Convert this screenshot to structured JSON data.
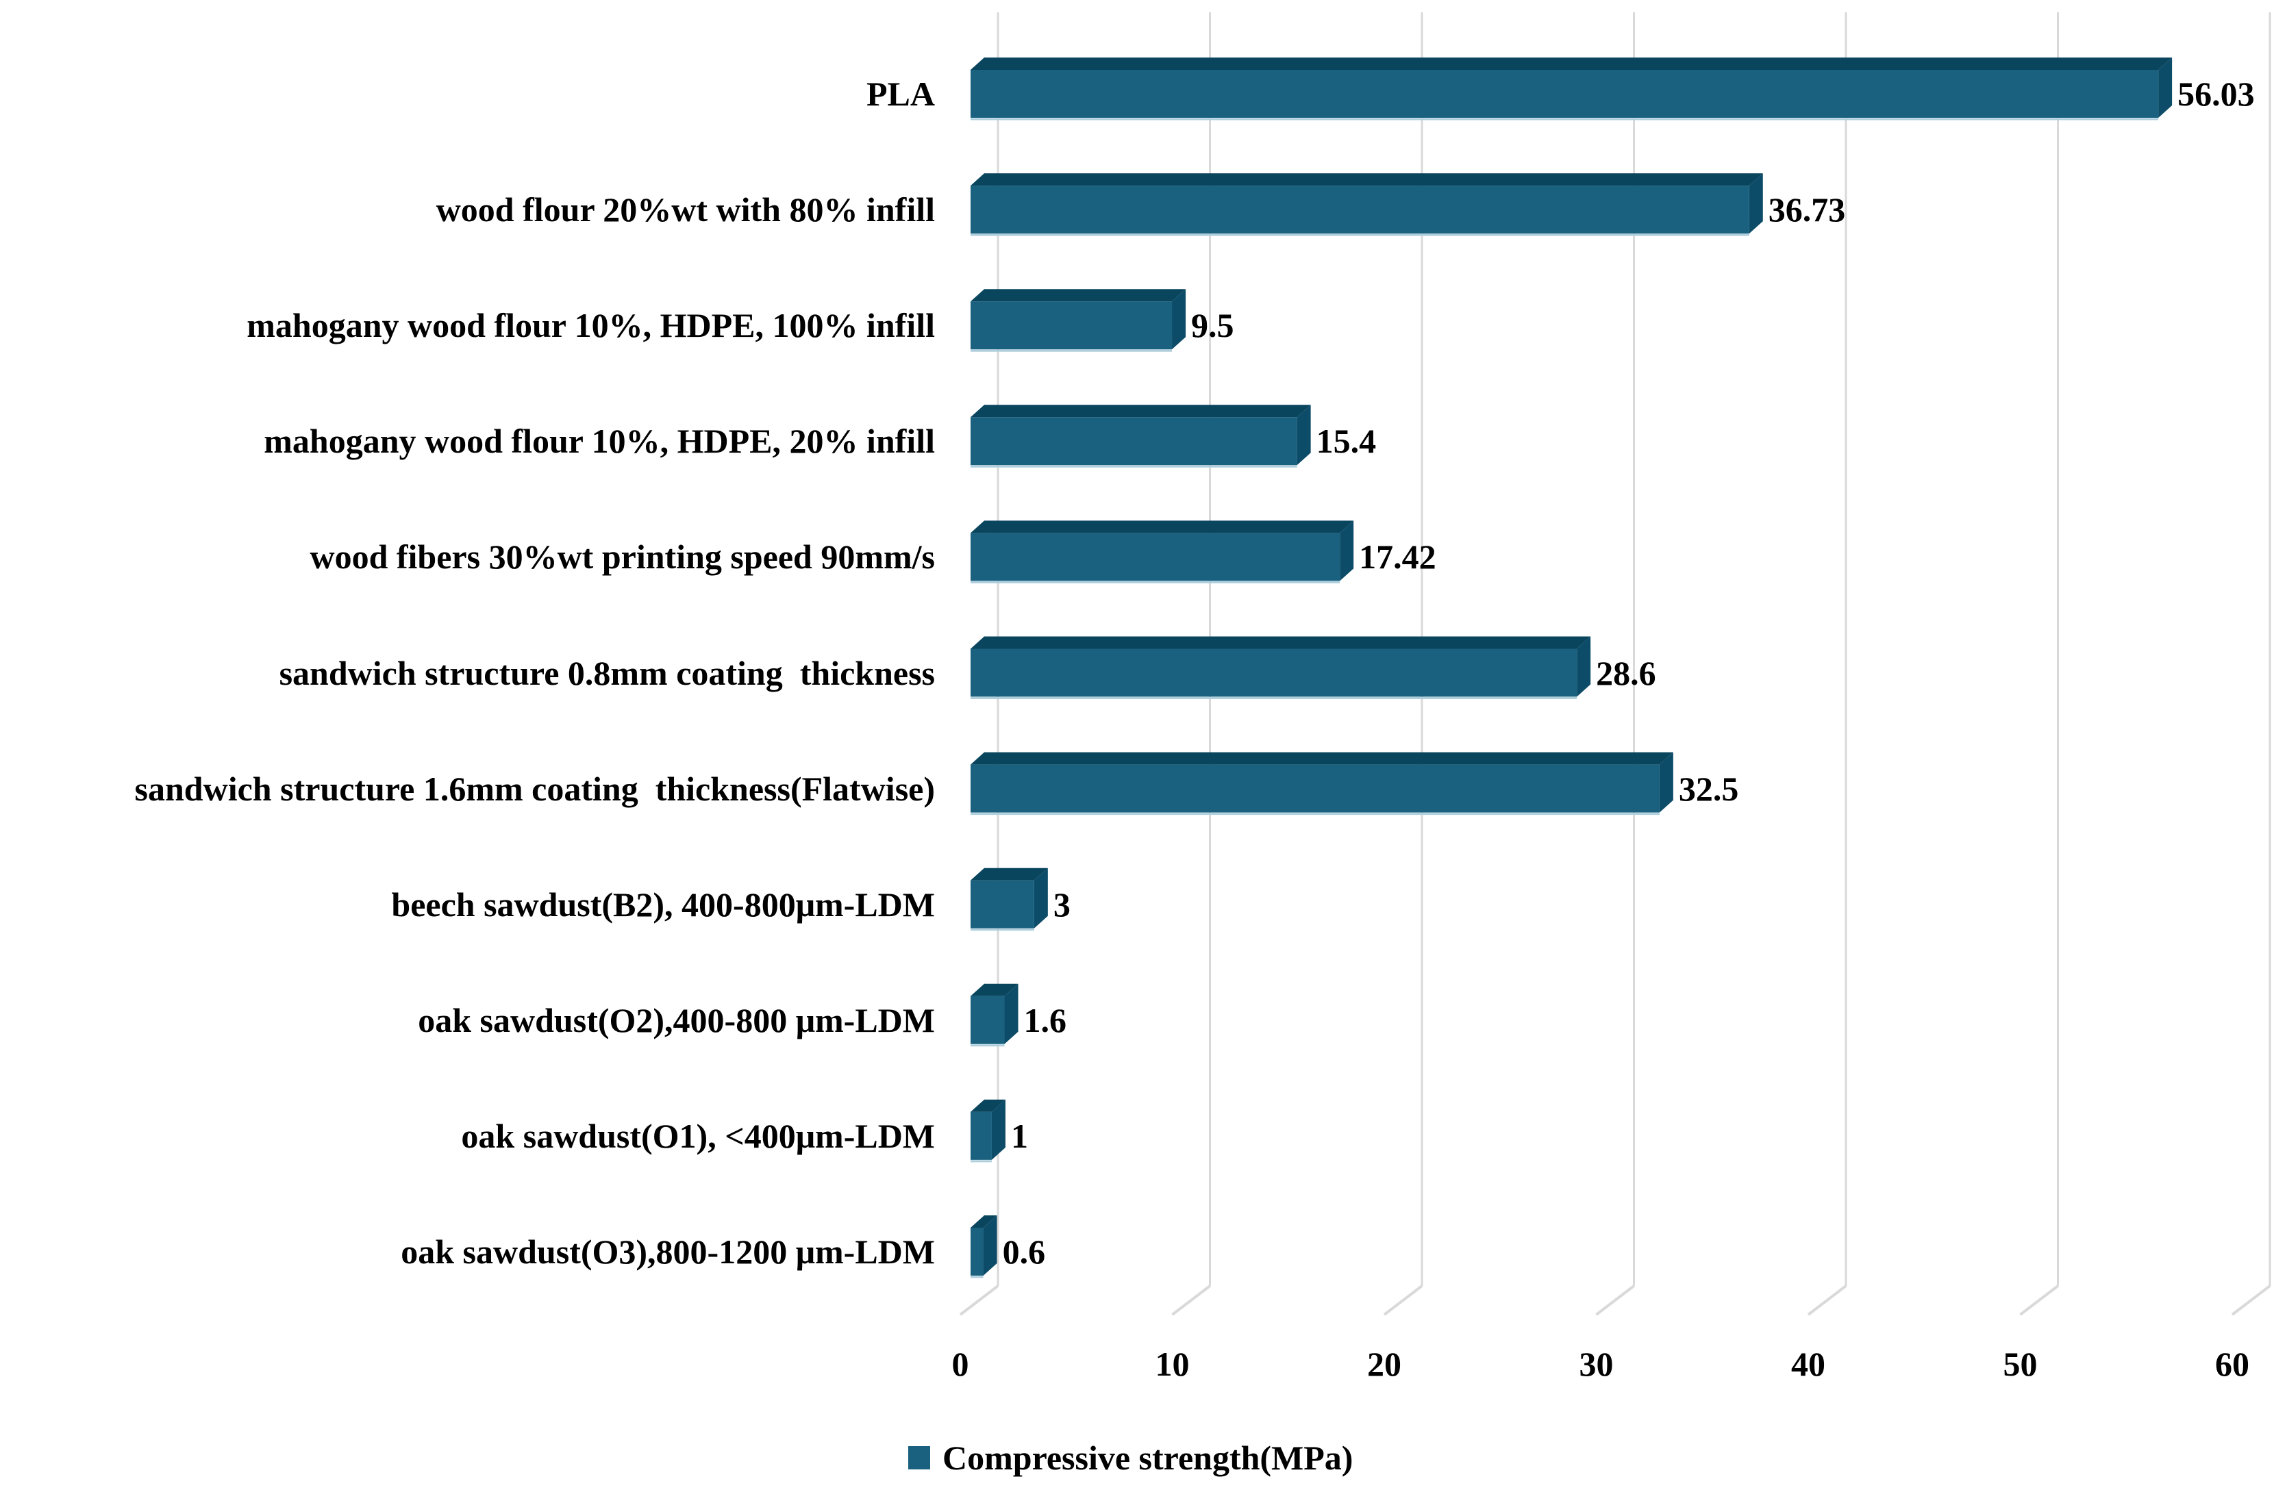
{
  "chart_data": {
    "type": "bar",
    "orientation": "horizontal",
    "style": "3d",
    "title": "",
    "xlabel": "",
    "ylabel": "",
    "categories": [
      "PLA",
      "wood flour 20%wt with 80% infill",
      "mahogany wood flour 10%, HDPE, 100% infill",
      "mahogany wood flour 10%, HDPE, 20% infill",
      "wood fibers 30%wt printing speed 90mm/s",
      "sandwich structure 0.8mm coating  thickness",
      "sandwich structure 1.6mm coating  thickness(Flatwise)",
      "beech sawdust(B2), 400-800μm-LDM",
      "oak sawdust(O2),400-800 μm-LDM",
      "oak sawdust(O1), <400μm-LDM",
      "oak sawdust(O3),800-1200 μm-LDM"
    ],
    "series": [
      {
        "name": "Compressive strength(MPa)",
        "values": [
          56.03,
          36.73,
          9.5,
          15.4,
          17.42,
          28.6,
          32.5,
          3,
          1.6,
          1,
          0.6
        ]
      }
    ],
    "value_labels": [
      "56.03",
      "36.73",
      "9.5",
      "15.4",
      "17.42",
      "28.6",
      "32.5",
      "3",
      "1.6",
      "1",
      "0.6"
    ],
    "x_ticks": [
      0,
      10,
      20,
      30,
      40,
      50,
      60
    ],
    "xlim": [
      0,
      60
    ],
    "grid": true,
    "legend_position": "bottom",
    "colors": {
      "bar_face": "#19617F",
      "bar_top": "#0A455E",
      "bar_end": "#0D4C68",
      "bar_bottom_highlight": "#AFCFDD",
      "gridline": "#D9D9D9",
      "text": "#000000",
      "background": "#FFFFFF"
    }
  },
  "legend": {
    "label": "Compressive strength(MPa)"
  }
}
